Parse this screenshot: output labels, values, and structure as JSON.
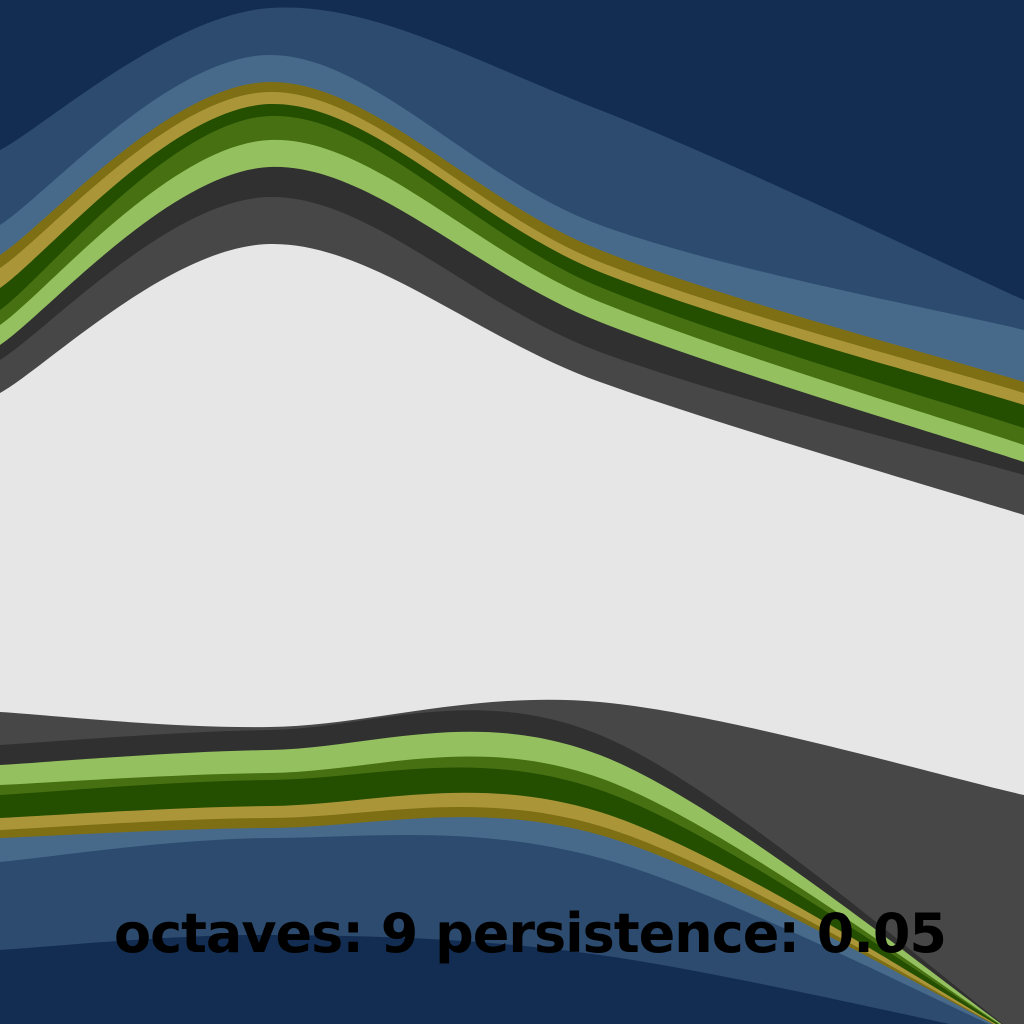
{
  "caption": {
    "octaves_label": "octaves:",
    "octaves_value": "9",
    "persistence_label": "persistence:",
    "persistence_value": "0.05"
  },
  "palette": {
    "deep_water": "#132d52",
    "water": "#2c4b6e",
    "shallow_water": "#486a8a",
    "sand_dark": "#7e6e14",
    "sand": "#aa9639",
    "forest_dark": "#244e00",
    "forest": "#467011",
    "grass": "#94c060",
    "rock_dark": "#303030",
    "rock": "#474747",
    "snow": "#e6e6e6"
  }
}
